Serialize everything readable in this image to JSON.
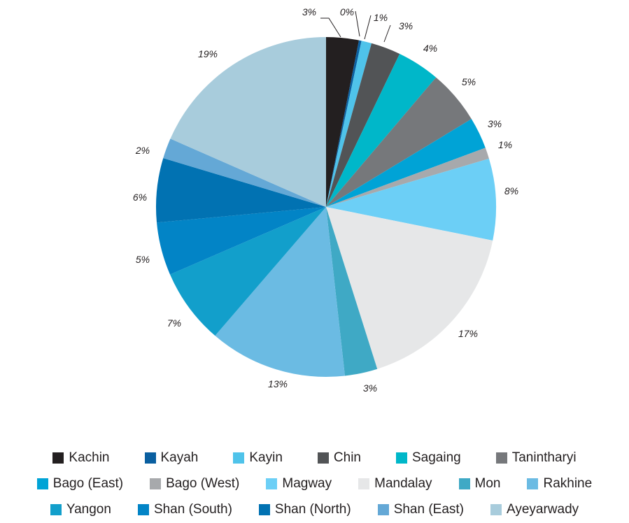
{
  "chart_data": {
    "type": "pie",
    "start": "top, clockwise",
    "slices": [
      {
        "label": "Kachin",
        "pct_label": "3%",
        "value": 3.2,
        "color": "#231f20"
      },
      {
        "label": "Kayah",
        "pct_label": "0%",
        "value": 0.25,
        "color": "#0a5fa0"
      },
      {
        "label": "Kayin",
        "pct_label": "1%",
        "value": 1.0,
        "color": "#4fc3ea"
      },
      {
        "label": "Chin",
        "pct_label": "3%",
        "value": 2.9,
        "color": "#525456"
      },
      {
        "label": "Sagaing",
        "pct_label": "4%",
        "value": 4.2,
        "color": "#00b7c9"
      },
      {
        "label": "Tanintharyi",
        "pct_label": "5%",
        "value": 5.3,
        "color": "#76787b"
      },
      {
        "label": "Bago (East)",
        "pct_label": "3%",
        "value": 3.1,
        "color": "#00a3d6"
      },
      {
        "label": "Bago (West)",
        "pct_label": "1%",
        "value": 1.1,
        "color": "#a7a9ac"
      },
      {
        "label": "Magway",
        "pct_label": "8%",
        "value": 8.0,
        "color": "#6ccff6"
      },
      {
        "label": "Mandalay",
        "pct_label": "17%",
        "value": 17.5,
        "color": "#e6e7e8"
      },
      {
        "label": "Mon",
        "pct_label": "3%",
        "value": 3.2,
        "color": "#3fa9c5"
      },
      {
        "label": "Rakhine",
        "pct_label": "13%",
        "value": 13.5,
        "color": "#6bbbe3"
      },
      {
        "label": "Yangon",
        "pct_label": "7%",
        "value": 7.4,
        "color": "#129fcb"
      },
      {
        "label": "Shan (South)",
        "pct_label": "5%",
        "value": 5.2,
        "color": "#0284c6"
      },
      {
        "label": "Shan (North)",
        "pct_label": "6%",
        "value": 6.3,
        "color": "#0172b2"
      },
      {
        "label": "Shan (East)",
        "pct_label": "2%",
        "value": 2.0,
        "color": "#64a8d6"
      },
      {
        "label": "Ayeyarwady",
        "pct_label": "19%",
        "value": 19.0,
        "color": "#a8ccdc"
      }
    ],
    "legend": {
      "placement": "bottom",
      "rows": [
        [
          "Kachin",
          "Kayah",
          "Kayin",
          "Chin",
          "Sagaing",
          "Tanintharyi"
        ],
        [
          "Bago (East)",
          "Bago (West)",
          "Magway",
          "Mandalay",
          "Mon",
          "Rakhine"
        ],
        [
          "Yangon",
          "Shan (South)",
          "Shan (North)",
          "Shan (East)",
          "Ayeyarwady"
        ]
      ]
    }
  }
}
